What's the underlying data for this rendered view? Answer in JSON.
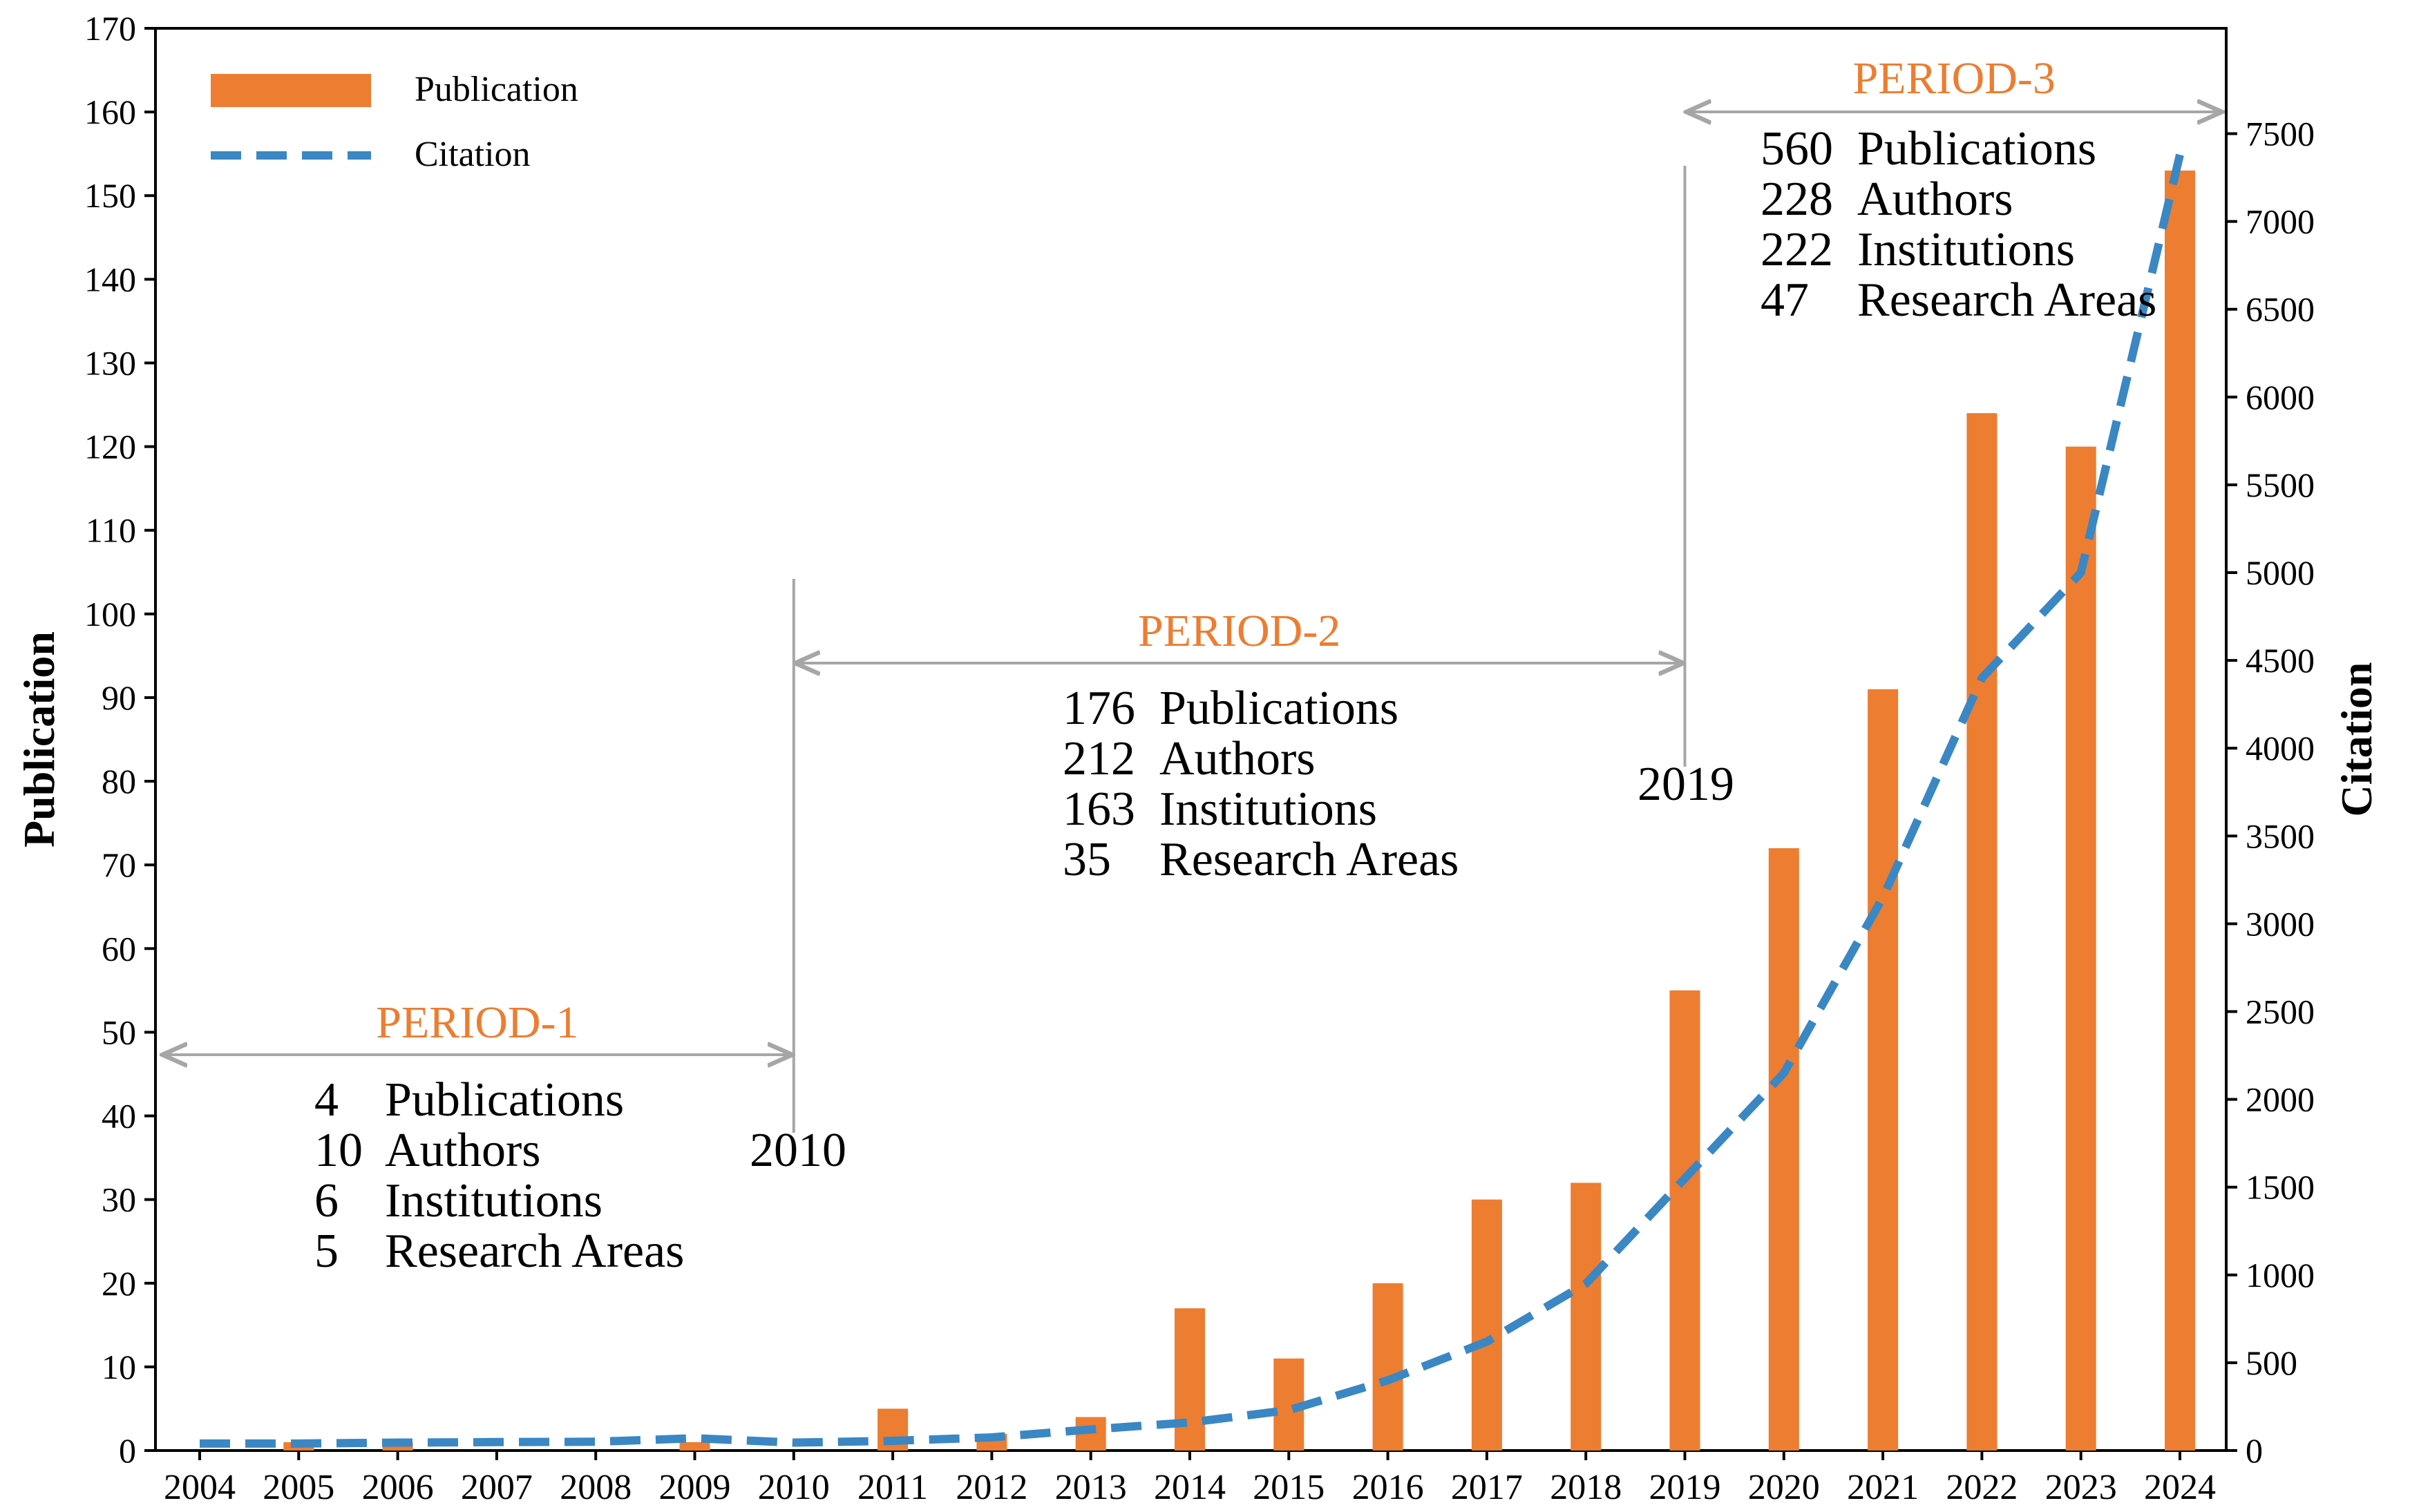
{
  "chart_data": {
    "type": "bar",
    "categories": [
      "2004",
      "2005",
      "2006",
      "2007",
      "2008",
      "2009",
      "2010",
      "2011",
      "2012",
      "2013",
      "2014",
      "2015",
      "2016",
      "2017",
      "2018",
      "2019",
      "2020",
      "2021",
      "2022",
      "2023",
      "2024"
    ],
    "series": [
      {
        "name": "Publication",
        "type": "bar",
        "axis": "left",
        "values": [
          0,
          1,
          1,
          0,
          0,
          1,
          0,
          5,
          2,
          4,
          17,
          11,
          20,
          30,
          32,
          55,
          72,
          91,
          124,
          120,
          153
        ]
      },
      {
        "name": "Citation",
        "type": "line",
        "axis": "right",
        "values": [
          40,
          40,
          45,
          48,
          50,
          70,
          45,
          55,
          75,
          120,
          160,
          230,
          400,
          620,
          950,
          1550,
          2150,
          3150,
          4400,
          5000,
          7380
        ]
      }
    ],
    "ylabel": "Publication",
    "y2label": "Citation",
    "ylim": [
      0,
      170
    ],
    "y2lim": [
      0,
      8100
    ],
    "yticks": [
      "0",
      "10",
      "20",
      "30",
      "40",
      "50",
      "60",
      "70",
      "80",
      "90",
      "100",
      "110",
      "120",
      "130",
      "140",
      "150",
      "160",
      "170"
    ],
    "y2ticks": [
      "0",
      "500",
      "1000",
      "1500",
      "2000",
      "2500",
      "3000",
      "3500",
      "4000",
      "4500",
      "5000",
      "5500",
      "6000",
      "6500",
      "7000",
      "7500"
    ],
    "legend_position": "top-left",
    "colors": {
      "bar": "#ed7d31",
      "line": "#3a87c4",
      "period_label": "#ed7d31",
      "arrow": "#a6a6a6"
    },
    "periods": [
      {
        "label": "PERIOD-1",
        "start": "2004",
        "end": "2010",
        "boundary_year": "2010",
        "stats": [
          [
            "4",
            "Publications"
          ],
          [
            "10",
            "Authors"
          ],
          [
            "6",
            "Institutions"
          ],
          [
            "5",
            "Research Areas"
          ]
        ]
      },
      {
        "label": "PERIOD-2",
        "start": "2010",
        "end": "2019",
        "boundary_year": "2019",
        "stats": [
          [
            "176",
            "Publications"
          ],
          [
            "212",
            "Authors"
          ],
          [
            "163",
            "Institutions"
          ],
          [
            "35",
            "Research Areas"
          ]
        ]
      },
      {
        "label": "PERIOD-3",
        "start": "2019",
        "end": "2024",
        "stats": [
          [
            "560",
            "Publications"
          ],
          [
            "228",
            "Authors"
          ],
          [
            "222",
            "Institutions"
          ],
          [
            "47",
            "Research Areas"
          ]
        ]
      }
    ]
  }
}
